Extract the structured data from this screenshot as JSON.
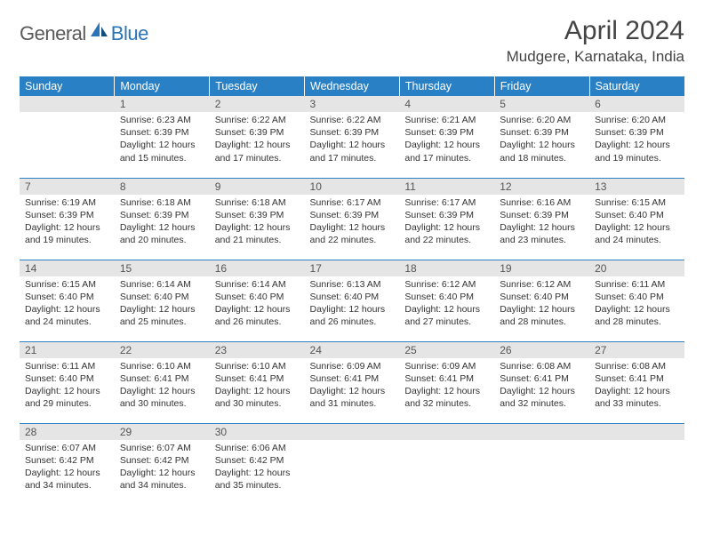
{
  "logo": {
    "text1": "General",
    "text2": "Blue",
    "accent": "#2a74b8",
    "gray": "#5a5a5a"
  },
  "header": {
    "month": "April 2024",
    "location": "Mudgere, Karnataka, India"
  },
  "colors": {
    "header_bg": "#2a80c5",
    "header_fg": "#ffffff",
    "daynum_bg": "#e5e5e5",
    "daynum_fg": "#555555",
    "rule": "#2a80c5",
    "text": "#333333",
    "page_bg": "#ffffff"
  },
  "weekdays": [
    "Sunday",
    "Monday",
    "Tuesday",
    "Wednesday",
    "Thursday",
    "Friday",
    "Saturday"
  ],
  "first_weekday_index": 1,
  "days": [
    {
      "n": 1,
      "sunrise": "6:23 AM",
      "sunset": "6:39 PM",
      "daylight": "12 hours and 15 minutes."
    },
    {
      "n": 2,
      "sunrise": "6:22 AM",
      "sunset": "6:39 PM",
      "daylight": "12 hours and 17 minutes."
    },
    {
      "n": 3,
      "sunrise": "6:22 AM",
      "sunset": "6:39 PM",
      "daylight": "12 hours and 17 minutes."
    },
    {
      "n": 4,
      "sunrise": "6:21 AM",
      "sunset": "6:39 PM",
      "daylight": "12 hours and 17 minutes."
    },
    {
      "n": 5,
      "sunrise": "6:20 AM",
      "sunset": "6:39 PM",
      "daylight": "12 hours and 18 minutes."
    },
    {
      "n": 6,
      "sunrise": "6:20 AM",
      "sunset": "6:39 PM",
      "daylight": "12 hours and 19 minutes."
    },
    {
      "n": 7,
      "sunrise": "6:19 AM",
      "sunset": "6:39 PM",
      "daylight": "12 hours and 19 minutes."
    },
    {
      "n": 8,
      "sunrise": "6:18 AM",
      "sunset": "6:39 PM",
      "daylight": "12 hours and 20 minutes."
    },
    {
      "n": 9,
      "sunrise": "6:18 AM",
      "sunset": "6:39 PM",
      "daylight": "12 hours and 21 minutes."
    },
    {
      "n": 10,
      "sunrise": "6:17 AM",
      "sunset": "6:39 PM",
      "daylight": "12 hours and 22 minutes."
    },
    {
      "n": 11,
      "sunrise": "6:17 AM",
      "sunset": "6:39 PM",
      "daylight": "12 hours and 22 minutes."
    },
    {
      "n": 12,
      "sunrise": "6:16 AM",
      "sunset": "6:39 PM",
      "daylight": "12 hours and 23 minutes."
    },
    {
      "n": 13,
      "sunrise": "6:15 AM",
      "sunset": "6:40 PM",
      "daylight": "12 hours and 24 minutes."
    },
    {
      "n": 14,
      "sunrise": "6:15 AM",
      "sunset": "6:40 PM",
      "daylight": "12 hours and 24 minutes."
    },
    {
      "n": 15,
      "sunrise": "6:14 AM",
      "sunset": "6:40 PM",
      "daylight": "12 hours and 25 minutes."
    },
    {
      "n": 16,
      "sunrise": "6:14 AM",
      "sunset": "6:40 PM",
      "daylight": "12 hours and 26 minutes."
    },
    {
      "n": 17,
      "sunrise": "6:13 AM",
      "sunset": "6:40 PM",
      "daylight": "12 hours and 26 minutes."
    },
    {
      "n": 18,
      "sunrise": "6:12 AM",
      "sunset": "6:40 PM",
      "daylight": "12 hours and 27 minutes."
    },
    {
      "n": 19,
      "sunrise": "6:12 AM",
      "sunset": "6:40 PM",
      "daylight": "12 hours and 28 minutes."
    },
    {
      "n": 20,
      "sunrise": "6:11 AM",
      "sunset": "6:40 PM",
      "daylight": "12 hours and 28 minutes."
    },
    {
      "n": 21,
      "sunrise": "6:11 AM",
      "sunset": "6:40 PM",
      "daylight": "12 hours and 29 minutes."
    },
    {
      "n": 22,
      "sunrise": "6:10 AM",
      "sunset": "6:41 PM",
      "daylight": "12 hours and 30 minutes."
    },
    {
      "n": 23,
      "sunrise": "6:10 AM",
      "sunset": "6:41 PM",
      "daylight": "12 hours and 30 minutes."
    },
    {
      "n": 24,
      "sunrise": "6:09 AM",
      "sunset": "6:41 PM",
      "daylight": "12 hours and 31 minutes."
    },
    {
      "n": 25,
      "sunrise": "6:09 AM",
      "sunset": "6:41 PM",
      "daylight": "12 hours and 32 minutes."
    },
    {
      "n": 26,
      "sunrise": "6:08 AM",
      "sunset": "6:41 PM",
      "daylight": "12 hours and 32 minutes."
    },
    {
      "n": 27,
      "sunrise": "6:08 AM",
      "sunset": "6:41 PM",
      "daylight": "12 hours and 33 minutes."
    },
    {
      "n": 28,
      "sunrise": "6:07 AM",
      "sunset": "6:42 PM",
      "daylight": "12 hours and 34 minutes."
    },
    {
      "n": 29,
      "sunrise": "6:07 AM",
      "sunset": "6:42 PM",
      "daylight": "12 hours and 34 minutes."
    },
    {
      "n": 30,
      "sunrise": "6:06 AM",
      "sunset": "6:42 PM",
      "daylight": "12 hours and 35 minutes."
    }
  ],
  "labels": {
    "sunrise": "Sunrise:",
    "sunset": "Sunset:",
    "daylight": "Daylight:"
  }
}
